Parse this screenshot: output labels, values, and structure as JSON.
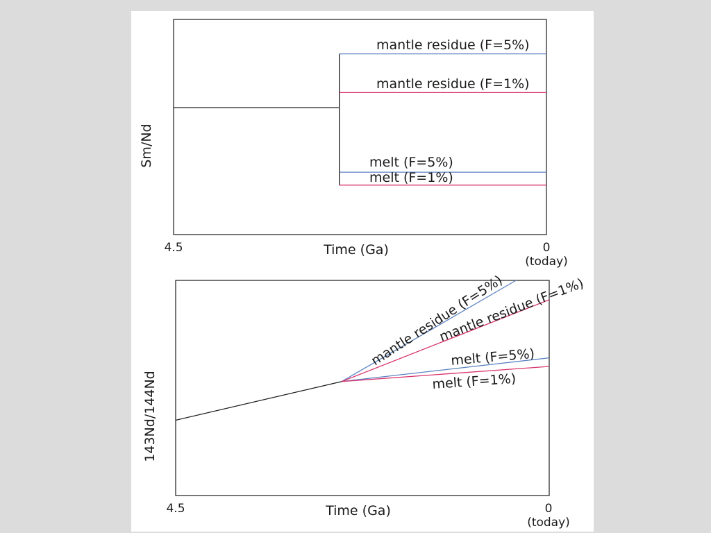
{
  "colors": {
    "page_bg": "#dcdcdc",
    "panel_bg": "#ffffff",
    "baseline": "#1a1a1a",
    "f5": "#5b82c2",
    "f1": "#d8336e"
  },
  "chart_data": [
    {
      "type": "line",
      "title": "",
      "xlabel": "Time (Ga)",
      "ylabel": "Sm/Nd",
      "xlim": [
        4.5,
        0
      ],
      "ylim": [
        0,
        100
      ],
      "x_ticks": [
        {
          "value": 4.5,
          "label": "4.5",
          "sublabel": ""
        },
        {
          "value": 0,
          "label": "0",
          "sublabel": "(today)"
        }
      ],
      "grid": false,
      "series": [
        {
          "name": "",
          "color_key": "baseline",
          "x": [
            4.5,
            2.5
          ],
          "y": [
            59,
            59
          ],
          "connector": {
            "x": 2.5,
            "y": [
              84,
              23
            ]
          }
        },
        {
          "name": "mantle residue (F=5%)",
          "color_key": "f5",
          "x": [
            2.5,
            0
          ],
          "y": [
            84,
            84
          ]
        },
        {
          "name": "mantle residue (F=1%)",
          "color_key": "f1",
          "x": [
            2.5,
            0
          ],
          "y": [
            66,
            66
          ]
        },
        {
          "name": "melt (F=5%)",
          "color_key": "f5",
          "x": [
            2.5,
            0
          ],
          "y": [
            29,
            29
          ]
        },
        {
          "name": "melt (F=1%)",
          "color_key": "f1",
          "x": [
            2.5,
            0
          ],
          "y": [
            23,
            23
          ]
        }
      ]
    },
    {
      "type": "line",
      "title": "",
      "xlabel": "Time (Ga)",
      "ylabel": "143Nd/144Nd",
      "xlim": [
        4.5,
        0
      ],
      "ylim": [
        0,
        100
      ],
      "x_ticks": [
        {
          "value": 4.5,
          "label": "4.5",
          "sublabel": ""
        },
        {
          "value": 0,
          "label": "0",
          "sublabel": "(today)"
        }
      ],
      "grid": false,
      "series": [
        {
          "name": "",
          "color_key": "baseline",
          "x": [
            4.5,
            2.5
          ],
          "y": [
            35,
            53
          ]
        },
        {
          "name": "mantle residue (F=5%)",
          "color_key": "f5",
          "x": [
            2.5,
            0.4
          ],
          "y": [
            53,
            100
          ]
        },
        {
          "name": "mantle residue (F=1%)",
          "color_key": "f1",
          "x": [
            2.5,
            0
          ],
          "y": [
            53,
            91
          ]
        },
        {
          "name": "melt (F=5%)",
          "color_key": "f5",
          "x": [
            2.5,
            0
          ],
          "y": [
            53,
            64
          ]
        },
        {
          "name": "melt (F=1%)",
          "color_key": "f1",
          "x": [
            2.5,
            0
          ],
          "y": [
            53,
            60
          ]
        }
      ]
    }
  ]
}
